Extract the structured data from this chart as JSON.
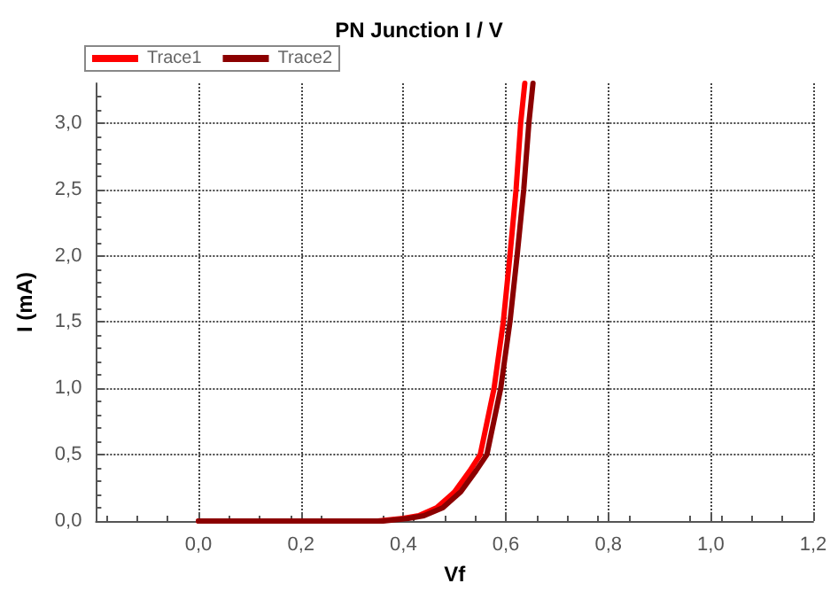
{
  "chart_data": {
    "type": "line",
    "title": "PN Junction I / V",
    "xlabel": "Vf",
    "ylabel": "I (mA)",
    "series": [
      {
        "name": "Trace1",
        "color": "#ff0000",
        "x": [
          0,
          0.2,
          0.35,
          0.4,
          0.43,
          0.465,
          0.5,
          0.53,
          0.55,
          0.577,
          0.595,
          0.608,
          0.62,
          0.629,
          0.637
        ],
        "values": [
          0,
          0,
          0,
          0.02,
          0.04,
          0.1,
          0.22,
          0.38,
          0.5,
          1.0,
          1.5,
          2.0,
          2.5,
          3.0,
          3.3
        ]
      },
      {
        "name": "Trace2",
        "color": "#8b0000",
        "x": [
          0,
          0.2,
          0.36,
          0.41,
          0.44,
          0.477,
          0.512,
          0.542,
          0.563,
          0.59,
          0.608,
          0.622,
          0.635,
          0.645,
          0.653
        ],
        "values": [
          0,
          0,
          0,
          0.02,
          0.04,
          0.1,
          0.22,
          0.38,
          0.5,
          1.0,
          1.5,
          2.0,
          2.5,
          3.0,
          3.3
        ]
      }
    ],
    "xlim": [
      -0.2,
      1.2
    ],
    "ylim": [
      0,
      3.3
    ],
    "xticks": [
      {
        "value": 0,
        "label": "0,0"
      },
      {
        "value": 0.2,
        "label": "0,2"
      },
      {
        "value": 0.4,
        "label": "0,4"
      },
      {
        "value": 0.6,
        "label": "0,6"
      },
      {
        "value": 0.8,
        "label": "0,8"
      },
      {
        "value": 1.0,
        "label": "1,0"
      },
      {
        "value": 1.2,
        "label": "1,2"
      }
    ],
    "yticks": [
      {
        "value": 0,
        "label": "0,0"
      },
      {
        "value": 0.5,
        "label": "0,5"
      },
      {
        "value": 1.0,
        "label": "1,0"
      },
      {
        "value": 1.5,
        "label": "1,5"
      },
      {
        "value": 2.0,
        "label": "2,0"
      },
      {
        "value": 2.5,
        "label": "2,5"
      },
      {
        "value": 3.0,
        "label": "3,0"
      }
    ],
    "grid": true,
    "legend": "top left",
    "marker": "none",
    "line_style": "solid"
  }
}
